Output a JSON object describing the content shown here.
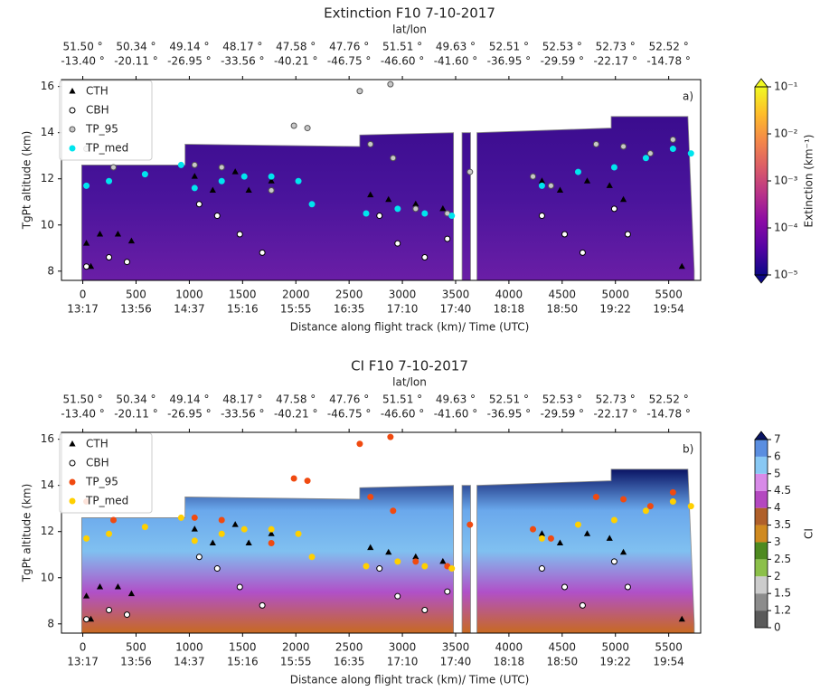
{
  "chart_data": [
    {
      "type": "scatter",
      "title": "Extinction F10  7-10-2017",
      "top_axis_label": "lat/lon",
      "top_ticks": {
        "values": [
          0,
          500,
          1000,
          1500,
          2000,
          2500,
          3000,
          3500,
          4000,
          4500,
          5000,
          5500
        ],
        "lat": [
          "51.50 °",
          "50.34 °",
          "49.14 °",
          "48.17 °",
          "47.58 °",
          "47.76 °",
          "51.51 °",
          "49.63 °",
          "52.51 °",
          "52.53 °",
          "52.73 °",
          "52.52 °"
        ],
        "lon": [
          "-13.40 °",
          "-20.11 °",
          "-26.95 °",
          "-33.56 °",
          "-40.21 °",
          "-46.75 °",
          "-46.60 °",
          "-41.60 °",
          "-36.95 °",
          "-29.59 °",
          "-22.17 °",
          "-14.78 °"
        ]
      },
      "xlabel": "Distance along flight track (km)/ Time (UTC)",
      "ylabel": "TgPt altitude (km)",
      "xlim": [
        -200,
        5800
      ],
      "ylim": [
        7.6,
        16.3
      ],
      "xticks": [
        0,
        500,
        1000,
        1500,
        2000,
        2500,
        3000,
        3500,
        4000,
        4500,
        5000,
        5500
      ],
      "xtick_times": [
        "13:17",
        "13:56",
        "14:37",
        "15:16",
        "15:55",
        "16:35",
        "17:10",
        "17:40",
        "18:18",
        "18:50",
        "19:22",
        "19:54"
      ],
      "yticks": [
        8,
        10,
        12,
        14,
        16
      ],
      "panel_label": "a)",
      "curtain": {
        "x": [
          -10,
          960,
          960,
          2600,
          2600,
          3480,
          null,
          3560,
          3640,
          null,
          3700,
          4960,
          4960,
          5680,
          5740
        ],
        "top": [
          12.6,
          12.6,
          13.5,
          13.4,
          13.9,
          14.0,
          null,
          14.0,
          14.0,
          null,
          14.0,
          14.2,
          14.7,
          14.7,
          8.0
        ],
        "colors": [
          "#6a1ea6",
          "#4a149c",
          "#3a0c8e"
        ]
      },
      "colorbar": {
        "scale": "log",
        "lim": [
          1e-05,
          0.1
        ],
        "label": "Extinction (km⁻¹)",
        "ticks": [
          {
            "value": 1e-05,
            "label": "10⁻⁵"
          },
          {
            "value": 0.0001,
            "label": "10⁻⁴"
          },
          {
            "value": 0.001,
            "label": "10⁻³"
          },
          {
            "value": 0.01,
            "label": "10⁻²"
          },
          {
            "value": 0.1,
            "label": "10⁻¹"
          }
        ],
        "colors": [
          "#0d0887",
          "#5302a3",
          "#8b0aa5",
          "#b83289",
          "#db5c68",
          "#f48849",
          "#febd2a",
          "#f0f921"
        ]
      },
      "series": [
        {
          "name": "CTH",
          "marker": "triangle",
          "color": "#000000",
          "edge": "#000000",
          "x": [
            34,
            76,
            161,
            330,
            457,
            1050,
            1220,
            1431,
            1558,
            1770,
            2700,
            2870,
            3125,
            3380,
            4310,
            4480,
            4735,
            4945,
            5075,
            5624
          ],
          "values": [
            9.2,
            8.2,
            9.6,
            9.6,
            9.3,
            12.1,
            11.5,
            12.3,
            11.5,
            11.9,
            11.3,
            11.1,
            10.9,
            10.7,
            11.9,
            11.5,
            11.9,
            11.7,
            11.1,
            8.2
          ]
        },
        {
          "name": "CBH",
          "marker": "circle",
          "color": "#ffffff",
          "edge": "#000000",
          "x": [
            34,
            246,
            415,
            1093,
            1262,
            1474,
            1685,
            2785,
            2955,
            3210,
            3422,
            4310,
            4523,
            4692,
            4989,
            5116
          ],
          "values": [
            8.2,
            8.6,
            8.4,
            10.9,
            10.4,
            9.6,
            8.8,
            10.4,
            9.2,
            8.6,
            9.4,
            10.4,
            9.6,
            8.8,
            10.7,
            9.6
          ]
        },
        {
          "name": "TP_95",
          "marker": "circle",
          "color": "#c8c8c8",
          "edge": "#555555",
          "x": [
            34,
            288,
            1050,
            1304,
            1770,
            1982,
            2109,
            2600,
            2700,
            2888,
            2913,
            3125,
            3422,
            3634,
            4226,
            4395,
            4819,
            5075,
            5328,
            5540
          ],
          "values": [
            13.3,
            12.5,
            12.6,
            12.5,
            11.5,
            14.3,
            14.2,
            15.8,
            13.5,
            16.1,
            12.9,
            10.7,
            10.5,
            12.3,
            12.1,
            11.7,
            13.5,
            13.4,
            13.1,
            13.7
          ]
        },
        {
          "name": "TP_med",
          "marker": "circle",
          "color": "#00e5ee",
          "edge": "#00e5ee",
          "x": [
            34,
            246,
            584,
            923,
            1050,
            1304,
            1516,
            1770,
            2024,
            2151,
            2660,
            2956,
            3210,
            3464,
            4310,
            4650,
            4989,
            5286,
            5540,
            5709
          ],
          "values": [
            11.7,
            11.9,
            12.2,
            12.6,
            11.6,
            11.9,
            12.1,
            12.1,
            11.9,
            10.9,
            10.5,
            10.7,
            10.5,
            10.4,
            11.7,
            12.3,
            12.5,
            12.9,
            13.3,
            13.1
          ]
        }
      ]
    },
    {
      "type": "scatter",
      "title": "CI F10  7-10-2017",
      "top_axis_label": "lat/lon",
      "top_ticks": {
        "values": [
          0,
          500,
          1000,
          1500,
          2000,
          2500,
          3000,
          3500,
          4000,
          4500,
          5000,
          5500
        ],
        "lat": [
          "51.50 °",
          "50.34 °",
          "49.14 °",
          "48.17 °",
          "47.58 °",
          "47.76 °",
          "51.51 °",
          "49.63 °",
          "52.51 °",
          "52.53 °",
          "52.73 °",
          "52.52 °"
        ],
        "lon": [
          "-13.40 °",
          "-20.11 °",
          "-26.95 °",
          "-33.56 °",
          "-40.21 °",
          "-46.75 °",
          "-46.60 °",
          "-41.60 °",
          "-36.95 °",
          "-29.59 °",
          "-22.17 °",
          "-14.78 °"
        ]
      },
      "xlabel": "Distance along flight track (km)/ Time (UTC)",
      "ylabel": "TgPt altitude (km)",
      "xlim": [
        -200,
        5800
      ],
      "ylim": [
        7.6,
        16.3
      ],
      "xticks": [
        0,
        500,
        1000,
        1500,
        2000,
        2500,
        3000,
        3500,
        4000,
        4500,
        5000,
        5500
      ],
      "xtick_times": [
        "13:17",
        "13:56",
        "14:37",
        "15:16",
        "15:55",
        "16:35",
        "17:10",
        "17:40",
        "18:18",
        "18:50",
        "19:22",
        "19:54"
      ],
      "yticks": [
        8,
        10,
        12,
        14,
        16
      ],
      "panel_label": "b)",
      "curtain": {
        "x": [
          -10,
          960,
          960,
          2600,
          2600,
          3480,
          null,
          3560,
          3640,
          null,
          3700,
          4960,
          4960,
          5680,
          5740
        ],
        "top": [
          12.6,
          12.6,
          13.5,
          13.4,
          13.9,
          14.0,
          null,
          14.0,
          14.0,
          null,
          14.0,
          14.2,
          14.7,
          14.7,
          8.0
        ],
        "colors": [
          "#c86a20",
          "#b050c8",
          "#80c0f0",
          "#6aa8ec",
          "#0a1464"
        ]
      },
      "colorbar": {
        "scale": "boundaries",
        "label": "CI",
        "ticks": [
          0,
          1.2,
          1.5,
          2,
          2.5,
          3,
          3.5,
          4,
          4.5,
          5,
          6,
          7
        ],
        "colors": [
          "#5a5a5a",
          "#8c8c8c",
          "#cccccc",
          "#8cc04a",
          "#4e8a20",
          "#d08a20",
          "#b0602a",
          "#b448c0",
          "#d88ae8",
          "#88c8f4",
          "#5a8ee0"
        ],
        "extend_color": "#0a1464"
      },
      "series": [
        {
          "name": "CTH",
          "marker": "triangle",
          "color": "#000000",
          "edge": "#000000",
          "x": [
            34,
            76,
            161,
            330,
            457,
            1050,
            1220,
            1431,
            1558,
            1770,
            2700,
            2870,
            3125,
            3380,
            4310,
            4480,
            4735,
            4945,
            5075,
            5624
          ],
          "values": [
            9.2,
            8.2,
            9.6,
            9.6,
            9.3,
            12.1,
            11.5,
            12.3,
            11.5,
            11.9,
            11.3,
            11.1,
            10.9,
            10.7,
            11.9,
            11.5,
            11.9,
            11.7,
            11.1,
            8.2
          ]
        },
        {
          "name": "CBH",
          "marker": "circle",
          "color": "#ffffff",
          "edge": "#000000",
          "x": [
            34,
            246,
            415,
            1093,
            1262,
            1474,
            1685,
            2785,
            2955,
            3210,
            3422,
            4310,
            4523,
            4692,
            4989,
            5116
          ],
          "values": [
            8.2,
            8.6,
            8.4,
            10.9,
            10.4,
            9.6,
            8.8,
            10.4,
            9.2,
            8.6,
            9.4,
            10.4,
            9.6,
            8.8,
            10.7,
            9.6
          ]
        },
        {
          "name": "TP_95",
          "marker": "circle",
          "color": "#f04a10",
          "edge": "#f04a10",
          "x": [
            34,
            288,
            1050,
            1304,
            1770,
            1982,
            2109,
            2600,
            2700,
            2888,
            2913,
            3125,
            3422,
            3634,
            4226,
            4395,
            4819,
            5075,
            5328,
            5540
          ],
          "values": [
            13.3,
            12.5,
            12.6,
            12.5,
            11.5,
            14.3,
            14.2,
            15.8,
            13.5,
            16.1,
            12.9,
            10.7,
            10.5,
            12.3,
            12.1,
            11.7,
            13.5,
            13.4,
            13.1,
            13.7
          ]
        },
        {
          "name": "TP_med",
          "marker": "circle",
          "color": "#ffd000",
          "edge": "#ffd000",
          "x": [
            34,
            246,
            584,
            923,
            1050,
            1304,
            1516,
            1770,
            2024,
            2151,
            2660,
            2956,
            3210,
            3464,
            4310,
            4650,
            4989,
            5286,
            5540,
            5709
          ],
          "values": [
            11.7,
            11.9,
            12.2,
            12.6,
            11.6,
            11.9,
            12.1,
            12.1,
            11.9,
            10.9,
            10.5,
            10.7,
            10.5,
            10.4,
            11.7,
            12.3,
            12.5,
            12.9,
            13.3,
            13.1
          ]
        }
      ]
    }
  ]
}
